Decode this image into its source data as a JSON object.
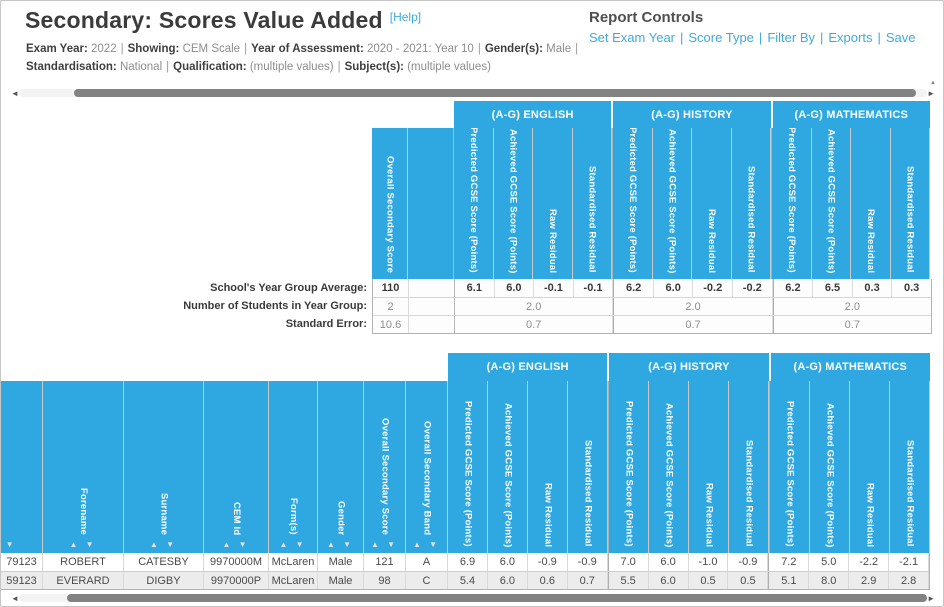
{
  "header": {
    "title": "Secondary: Scores Value Added",
    "help_label": "[Help]",
    "separator": "|",
    "filters_line1": [
      {
        "label": "Exam Year:",
        "value": "2022"
      },
      {
        "label": "Showing:",
        "value": "CEM Scale"
      },
      {
        "label": "Year of Assessment:",
        "value": "2020 - 2021: Year 10"
      },
      {
        "label": "Gender(s):",
        "value": "Male"
      }
    ],
    "filters_line2": [
      {
        "label": "Standardisation:",
        "value": "National"
      },
      {
        "label": "Qualification:",
        "value": "(multiple values)"
      },
      {
        "label": "Subject(s):",
        "value": "(multiple values)"
      }
    ]
  },
  "report_controls": {
    "title": "Report Controls",
    "separator": "|",
    "links": [
      "Set Exam Year",
      "Score Type",
      "Filter By",
      "Exports",
      "Save"
    ]
  },
  "subject_groups": [
    "(A-G) ENGLISH",
    "(A-G) HISTORY",
    "(A-G) MATHEMATICS"
  ],
  "subject_subcolumns": [
    "Predicted GCSE Score (Points)",
    "Achieved GCSE Score (Points)",
    "Raw Residual",
    "Standardised Residual"
  ],
  "summary_table": {
    "score_column_header": "Overall Secondary Score",
    "rows": [
      {
        "label": "School's Year Group Average:",
        "score": "110",
        "cells": [
          "6.1",
          "6.0",
          "-0.1",
          "-0.1",
          "6.2",
          "6.0",
          "-0.2",
          "-0.2",
          "6.2",
          "6.5",
          "0.3",
          "0.3"
        ]
      },
      {
        "label": "Number of Students in Year Group:",
        "score": "2",
        "merged": [
          "2.0",
          "2.0",
          "2.0"
        ]
      },
      {
        "label": "Standard Error:",
        "score": "10.6",
        "merged": [
          "0.7",
          "0.7",
          "0.7"
        ]
      }
    ]
  },
  "students_table": {
    "columns": [
      "",
      "Forename",
      "Surname",
      "CEM Id",
      "Form(s)",
      "Gender",
      "Overall Secondary Score",
      "Overall Secondary Band"
    ],
    "rows": [
      {
        "cells": [
          "79123",
          "ROBERT",
          "CATESBY",
          "9970000M",
          "McLaren",
          "Male",
          "121",
          "A"
        ],
        "scores": [
          "6.9",
          "6.0",
          "-0.9",
          "-0.9",
          "7.0",
          "6.0",
          "-1.0",
          "-0.9",
          "7.2",
          "5.0",
          "-2.2",
          "-2.1"
        ]
      },
      {
        "cells": [
          "59123",
          "EVERARD",
          "DIGBY",
          "9970000P",
          "McLaren",
          "Male",
          "98",
          "C"
        ],
        "scores": [
          "5.4",
          "6.0",
          "0.6",
          "0.7",
          "5.5",
          "6.0",
          "0.5",
          "0.5",
          "5.1",
          "8.0",
          "2.9",
          "2.8"
        ]
      }
    ]
  },
  "icons": {
    "sort_asc": "▲",
    "sort_desc": "▼",
    "scroll_left": "◄",
    "scroll_right": "►",
    "scroll_up": "▲"
  },
  "colors": {
    "accent_blue": "#2FA8E1",
    "link_blue": "#3FA9DC"
  }
}
